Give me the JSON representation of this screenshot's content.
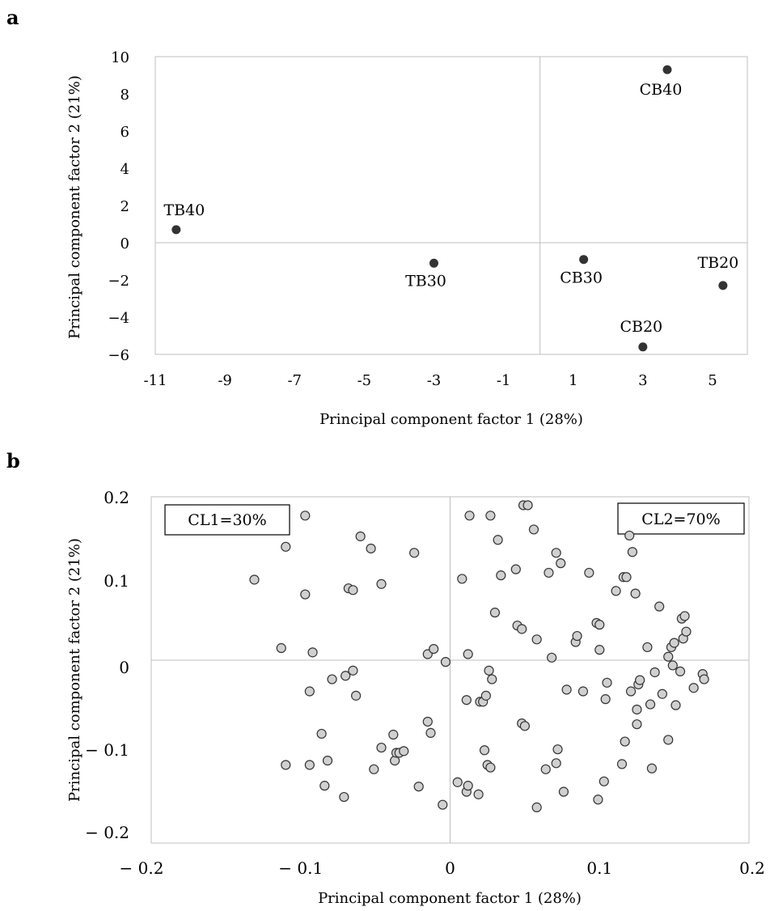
{
  "chart_data": [
    {
      "panel": "a",
      "type": "scatter",
      "xlabel": "Principal component factor 1 (28%)",
      "ylabel": "Principal component factor 2 (21%)",
      "xlim": [
        -11,
        6
      ],
      "ylim": [
        -6,
        10
      ],
      "xticks": [
        "-11",
        "-9",
        "-7",
        "-5",
        "-3",
        "-1",
        "1",
        "3",
        "5"
      ],
      "yticks": [
        "10",
        "8",
        "6",
        "4",
        "2",
        "0",
        "−2",
        "−4",
        "−6"
      ],
      "points": [
        {
          "label": "TB40",
          "x": -10.4,
          "y": 0.7
        },
        {
          "label": "TB30",
          "x": -3.0,
          "y": -1.1
        },
        {
          "label": "CB30",
          "x": 1.3,
          "y": -0.9
        },
        {
          "label": "CB40",
          "x": 3.7,
          "y": 9.3
        },
        {
          "label": "TB20",
          "x": 5.3,
          "y": -2.3
        },
        {
          "label": "CB20",
          "x": 3.0,
          "y": -5.6
        }
      ]
    },
    {
      "panel": "b",
      "type": "scatter",
      "xlabel": "Principal component factor 1 (28%)",
      "ylabel": "Principal component factor 2 (21%)",
      "xlim": [
        -0.2,
        0.2
      ],
      "ylim": [
        -0.2,
        0.2
      ],
      "xticks": [
        "− 0.2",
        "− 0.1",
        "0",
        "0.1",
        "0.2"
      ],
      "yticks": [
        "0.2",
        "0.1",
        "0",
        "− 0.1",
        "− 0.2"
      ],
      "annotations": [
        "CL1=30%",
        "CL2=70%"
      ],
      "points": [
        [
          -0.131,
          0.093
        ],
        [
          -0.113,
          0.014
        ],
        [
          -0.11,
          0.131
        ],
        [
          -0.11,
          -0.121
        ],
        [
          -0.097,
          0.167
        ],
        [
          -0.097,
          0.076
        ],
        [
          -0.094,
          -0.036
        ],
        [
          -0.094,
          -0.121
        ],
        [
          -0.092,
          0.009
        ],
        [
          -0.086,
          -0.085
        ],
        [
          -0.084,
          -0.145
        ],
        [
          -0.082,
          -0.116
        ],
        [
          -0.079,
          -0.022
        ],
        [
          -0.071,
          -0.158
        ],
        [
          -0.07,
          -0.018
        ],
        [
          -0.068,
          0.083
        ],
        [
          -0.065,
          0.081
        ],
        [
          -0.065,
          -0.012
        ],
        [
          -0.063,
          -0.041
        ],
        [
          -0.06,
          0.143
        ],
        [
          -0.053,
          0.129
        ],
        [
          -0.051,
          -0.126
        ],
        [
          -0.046,
          0.088
        ],
        [
          -0.046,
          -0.101
        ],
        [
          -0.038,
          -0.086
        ],
        [
          -0.037,
          -0.116
        ],
        [
          -0.036,
          -0.107
        ],
        [
          -0.034,
          -0.107
        ],
        [
          -0.031,
          -0.105
        ],
        [
          -0.024,
          0.124
        ],
        [
          -0.021,
          -0.146
        ],
        [
          -0.015,
          -0.071
        ],
        [
          -0.015,
          0.007
        ],
        [
          -0.013,
          -0.084
        ],
        [
          -0.011,
          0.013
        ],
        [
          -0.005,
          -0.167
        ],
        [
          -0.003,
          -0.002
        ],
        [
          0.005,
          -0.141
        ],
        [
          0.008,
          0.094
        ],
        [
          0.011,
          -0.152
        ],
        [
          0.011,
          -0.046
        ],
        [
          0.012,
          0.007
        ],
        [
          0.012,
          -0.145
        ],
        [
          0.013,
          0.167
        ],
        [
          0.019,
          -0.155
        ],
        [
          0.02,
          -0.048
        ],
        [
          0.022,
          -0.048
        ],
        [
          0.023,
          -0.104
        ],
        [
          0.024,
          -0.041
        ],
        [
          0.025,
          -0.121
        ],
        [
          0.026,
          -0.012
        ],
        [
          0.027,
          -0.124
        ],
        [
          0.027,
          0.167
        ],
        [
          0.028,
          -0.022
        ],
        [
          0.03,
          0.055
        ],
        [
          0.032,
          0.139
        ],
        [
          0.034,
          0.098
        ],
        [
          0.044,
          0.105
        ],
        [
          0.045,
          0.04
        ],
        [
          0.048,
          0.036
        ],
        [
          0.048,
          -0.073
        ],
        [
          0.049,
          0.179
        ],
        [
          0.05,
          -0.076
        ],
        [
          0.052,
          0.179
        ],
        [
          0.056,
          0.151
        ],
        [
          0.058,
          0.024
        ],
        [
          0.058,
          -0.17
        ],
        [
          0.064,
          -0.126
        ],
        [
          0.066,
          0.101
        ],
        [
          0.068,
          0.003
        ],
        [
          0.071,
          0.124
        ],
        [
          0.071,
          -0.119
        ],
        [
          0.072,
          -0.103
        ],
        [
          0.074,
          0.112
        ],
        [
          0.076,
          -0.152
        ],
        [
          0.078,
          -0.034
        ],
        [
          0.084,
          0.021
        ],
        [
          0.085,
          0.028
        ],
        [
          0.089,
          -0.036
        ],
        [
          0.093,
          0.101
        ],
        [
          0.098,
          0.043
        ],
        [
          0.099,
          -0.161
        ],
        [
          0.1,
          0.041
        ],
        [
          0.1,
          0.012
        ],
        [
          0.103,
          -0.14
        ],
        [
          0.104,
          -0.045
        ],
        [
          0.105,
          -0.026
        ],
        [
          0.111,
          0.08
        ],
        [
          0.115,
          -0.12
        ],
        [
          0.116,
          0.096
        ],
        [
          0.117,
          -0.094
        ],
        [
          0.118,
          0.096
        ],
        [
          0.12,
          0.144
        ],
        [
          0.121,
          -0.036
        ],
        [
          0.122,
          0.125
        ],
        [
          0.124,
          0.077
        ],
        [
          0.125,
          -0.057
        ],
        [
          0.125,
          -0.074
        ],
        [
          0.126,
          -0.028
        ],
        [
          0.127,
          -0.023
        ],
        [
          0.132,
          0.015
        ],
        [
          0.134,
          -0.051
        ],
        [
          0.135,
          -0.125
        ],
        [
          0.137,
          -0.014
        ],
        [
          0.14,
          0.062
        ],
        [
          0.142,
          -0.039
        ],
        [
          0.146,
          -0.092
        ],
        [
          0.146,
          0.004
        ],
        [
          0.148,
          0.015
        ],
        [
          0.149,
          -0.006
        ],
        [
          0.15,
          0.02
        ],
        [
          0.151,
          -0.052
        ],
        [
          0.154,
          -0.013
        ],
        [
          0.155,
          0.048
        ],
        [
          0.156,
          0.025
        ],
        [
          0.157,
          0.051
        ],
        [
          0.158,
          0.033
        ],
        [
          0.163,
          -0.032
        ],
        [
          0.169,
          -0.016
        ],
        [
          0.17,
          -0.022
        ]
      ]
    }
  ]
}
